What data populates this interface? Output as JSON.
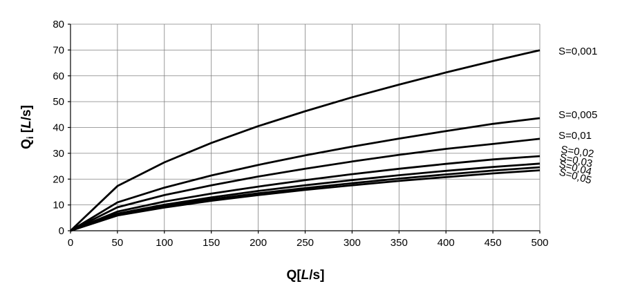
{
  "chart_data": {
    "type": "line",
    "x": [
      0,
      50,
      100,
      150,
      200,
      250,
      300,
      350,
      400,
      450,
      500
    ],
    "xlim": [
      0,
      500
    ],
    "ylim": [
      0,
      80
    ],
    "xticks": [
      0,
      50,
      100,
      150,
      200,
      250,
      300,
      350,
      400,
      450,
      500
    ],
    "yticks": [
      0,
      10,
      20,
      30,
      40,
      50,
      60,
      70,
      80
    ],
    "grid": true,
    "legend": "inline-right",
    "xlabel": {
      "main": "Q[",
      "unit": "L",
      "rest": "/s]"
    },
    "ylabel": {
      "main": "Q",
      "sub": "i",
      "space": " [",
      "unit": "L",
      "rest": "/s]"
    },
    "series": [
      {
        "name": "S=0,001",
        "values": [
          0,
          17.3,
          26.5,
          34.0,
          40.5,
          46.3,
          51.7,
          56.6,
          61.3,
          65.7,
          69.9
        ]
      },
      {
        "name": "S=0,005",
        "values": [
          0,
          11.0,
          16.7,
          21.4,
          25.5,
          29.2,
          32.6,
          35.7,
          38.6,
          41.4,
          43.6
        ]
      },
      {
        "name": "S=0,01",
        "values": [
          0,
          9.1,
          13.8,
          17.6,
          21.0,
          24.0,
          26.8,
          29.4,
          31.7,
          33.6,
          35.6
        ]
      },
      {
        "name": "S=0,02",
        "values": [
          0,
          7.4,
          11.3,
          14.4,
          17.1,
          19.6,
          21.9,
          24.0,
          25.9,
          27.6,
          28.9
        ]
      },
      {
        "name": "S=0,03",
        "values": [
          0,
          6.6,
          10.1,
          12.9,
          15.4,
          17.6,
          19.6,
          21.5,
          23.2,
          24.7,
          26.0
        ]
      },
      {
        "name": "S=0,04",
        "values": [
          0,
          6.2,
          9.5,
          12.2,
          14.5,
          16.5,
          18.4,
          20.2,
          21.8,
          23.3,
          24.6
        ]
      },
      {
        "name": "S=0,05",
        "values": [
          0,
          5.9,
          9.0,
          11.6,
          13.8,
          15.8,
          17.6,
          19.3,
          20.8,
          22.2,
          23.4
        ]
      }
    ]
  }
}
